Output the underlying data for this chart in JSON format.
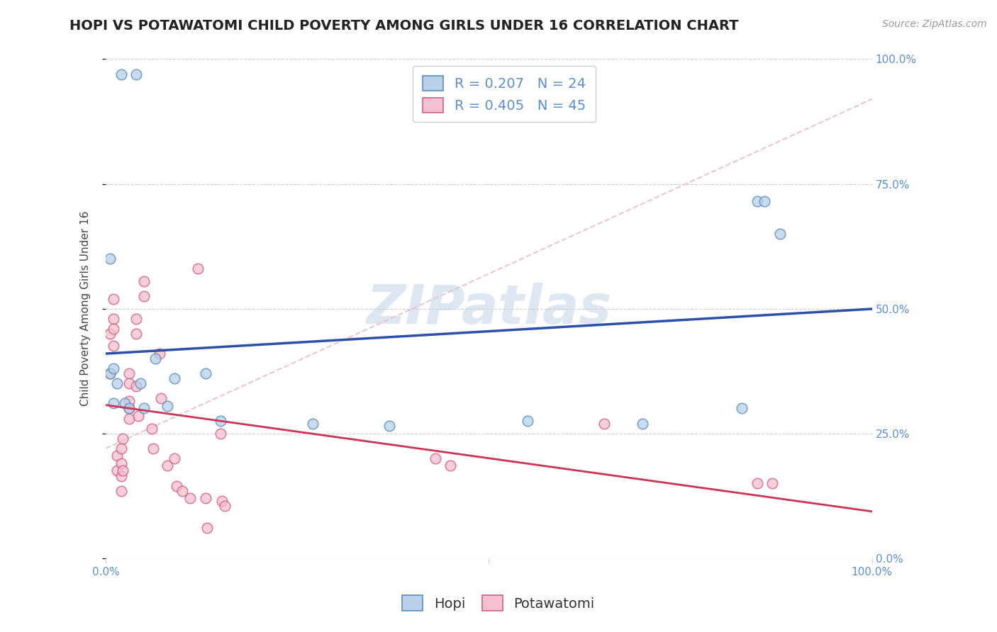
{
  "title": "HOPI VS POTAWATOMI CHILD POVERTY AMONG GIRLS UNDER 16 CORRELATION CHART",
  "source": "Source: ZipAtlas.com",
  "ylabel": "Child Poverty Among Girls Under 16",
  "xlim": [
    0,
    1
  ],
  "ylim": [
    0,
    1
  ],
  "y_ticks": [
    0.0,
    0.25,
    0.5,
    0.75,
    1.0
  ],
  "y_tick_labels": [
    "0.0%",
    "25.0%",
    "50.0%",
    "75.0%",
    "100.0%"
  ],
  "x_ticks": [
    0.0,
    1.0
  ],
  "x_tick_labels": [
    "0.0%",
    "100.0%"
  ],
  "background_color": "#ffffff",
  "grid_color": "#d0d0d0",
  "hopi_color": "#b8d0ea",
  "hopi_edge_color": "#5b8db8",
  "potawatomi_color": "#f5c0d0",
  "potawatomi_edge_color": "#d06080",
  "hopi_line_color": "#2b4faa",
  "potawatomi_line_color": "#cc3355",
  "diagonal_color": "#e8c0cc",
  "watermark_color": "#c5d8ea",
  "legend_hopi_R": "0.207",
  "legend_hopi_N": "24",
  "legend_potawatomi_R": "0.405",
  "legend_potawatomi_N": "45",
  "tick_color": "#5b8fcc",
  "hopi_x": [
    0.02,
    0.04,
    0.005,
    0.005,
    0.01,
    0.01,
    0.015,
    0.025,
    0.03,
    0.045,
    0.05,
    0.065,
    0.08,
    0.09,
    0.13,
    0.15,
    0.27,
    0.37,
    0.55,
    0.7,
    0.83,
    0.85,
    0.86,
    0.88
  ],
  "hopi_y": [
    0.97,
    0.97,
    0.37,
    0.6,
    0.38,
    0.31,
    0.35,
    0.31,
    0.3,
    0.35,
    0.3,
    0.4,
    0.305,
    0.36,
    0.37,
    0.275,
    0.27,
    0.265,
    0.275,
    0.27,
    0.3,
    0.715,
    0.715,
    0.65
  ],
  "potawatomi_x": [
    0.005,
    0.005,
    0.01,
    0.01,
    0.01,
    0.01,
    0.015,
    0.015,
    0.02,
    0.02,
    0.02,
    0.02,
    0.022,
    0.022,
    0.03,
    0.03,
    0.03,
    0.03,
    0.03,
    0.04,
    0.04,
    0.04,
    0.042,
    0.05,
    0.05,
    0.06,
    0.062,
    0.07,
    0.072,
    0.08,
    0.09,
    0.092,
    0.1,
    0.11,
    0.12,
    0.13,
    0.132,
    0.15,
    0.152,
    0.155,
    0.43,
    0.45,
    0.65,
    0.85,
    0.87
  ],
  "potawatomi_y": [
    0.37,
    0.45,
    0.52,
    0.48,
    0.425,
    0.46,
    0.205,
    0.175,
    0.135,
    0.19,
    0.165,
    0.22,
    0.24,
    0.175,
    0.3,
    0.37,
    0.315,
    0.35,
    0.28,
    0.48,
    0.45,
    0.345,
    0.285,
    0.555,
    0.525,
    0.26,
    0.22,
    0.41,
    0.32,
    0.185,
    0.2,
    0.145,
    0.135,
    0.12,
    0.58,
    0.12,
    0.06,
    0.25,
    0.115,
    0.105,
    0.2,
    0.185,
    0.27,
    0.15,
    0.15
  ],
  "marker_size": 110,
  "alpha": 0.75,
  "title_fontsize": 14,
  "axis_label_fontsize": 11,
  "tick_fontsize": 11,
  "legend_fontsize": 14,
  "source_fontsize": 10,
  "watermark_fontsize": 55
}
